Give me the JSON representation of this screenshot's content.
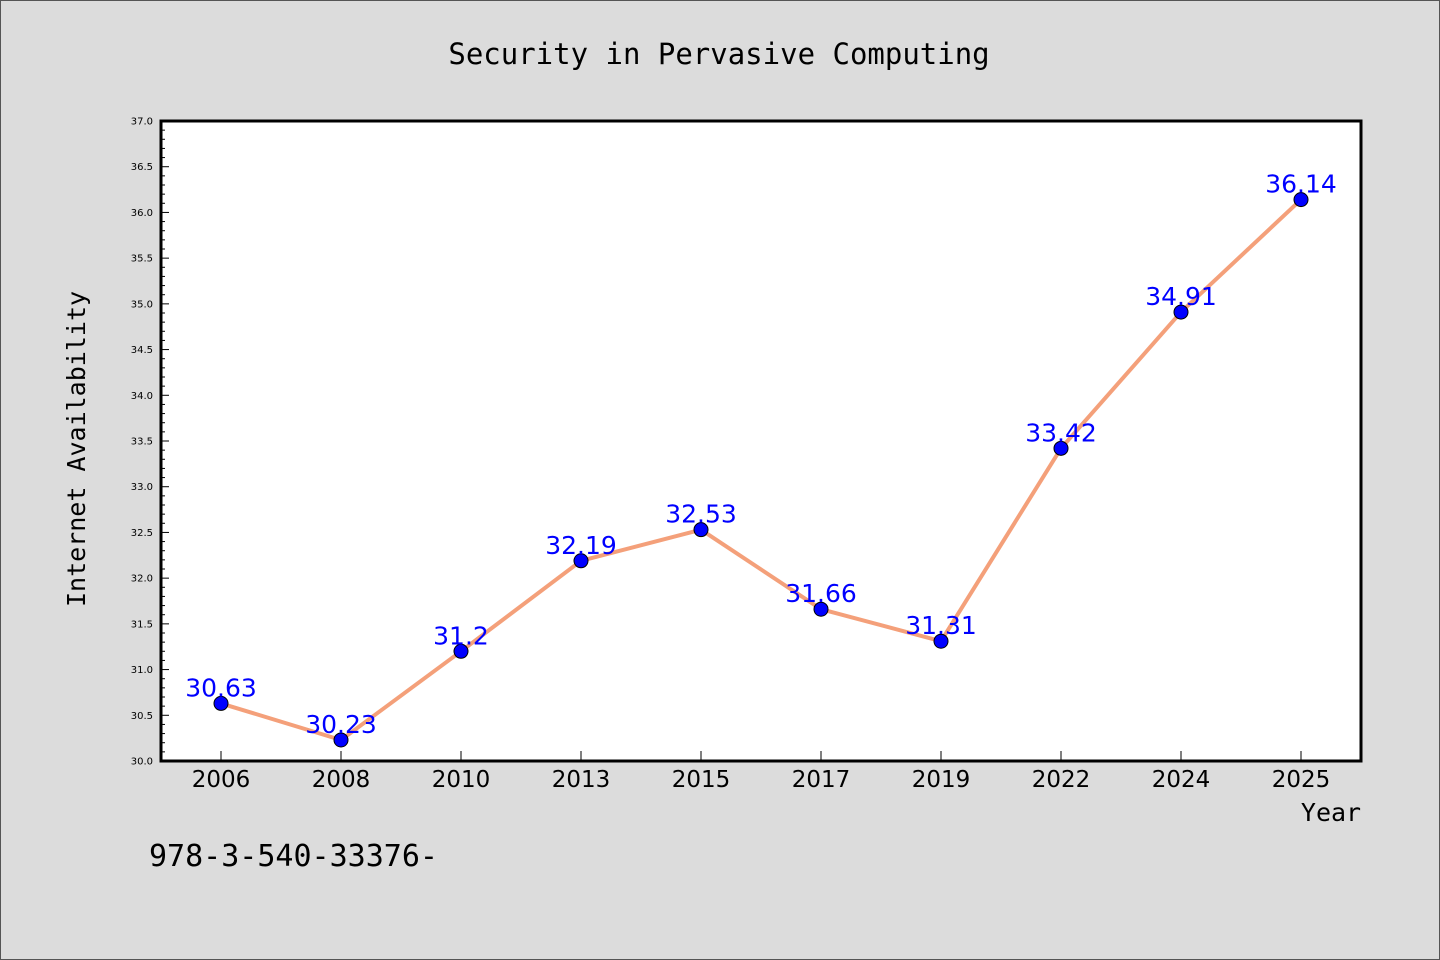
{
  "chart_data": {
    "type": "line",
    "title": "Security in Pervasive Computing",
    "xlabel": "Year",
    "ylabel": "Internet Availability",
    "categories": [
      "2006",
      "2008",
      "2010",
      "2013",
      "2015",
      "2017",
      "2019",
      "2022",
      "2024",
      "2025"
    ],
    "values": [
      30.63,
      30.23,
      31.2,
      32.19,
      32.53,
      31.66,
      31.31,
      33.42,
      34.91,
      36.14
    ],
    "data_labels": [
      "30.63",
      "30.23",
      "31.2",
      "32.19",
      "32.53",
      "31.66",
      "31.31",
      "33.42",
      "34.91",
      "36.14"
    ],
    "ylim": [
      30.0,
      37.0
    ],
    "yticks": [
      "30.0",
      "30.5",
      "31.0",
      "31.5",
      "32.0",
      "32.5",
      "33.0",
      "33.5",
      "34.0",
      "34.5",
      "35.0",
      "35.5",
      "36.0",
      "36.5",
      "37.0"
    ],
    "grid": false,
    "line_color": "#f4a07a",
    "marker_color": "#0000ff",
    "label_color": "#0000ff",
    "background_color": "#dcdcdc",
    "plot_background": "#ffffff"
  },
  "footer_text": "978-3-540-33376-"
}
